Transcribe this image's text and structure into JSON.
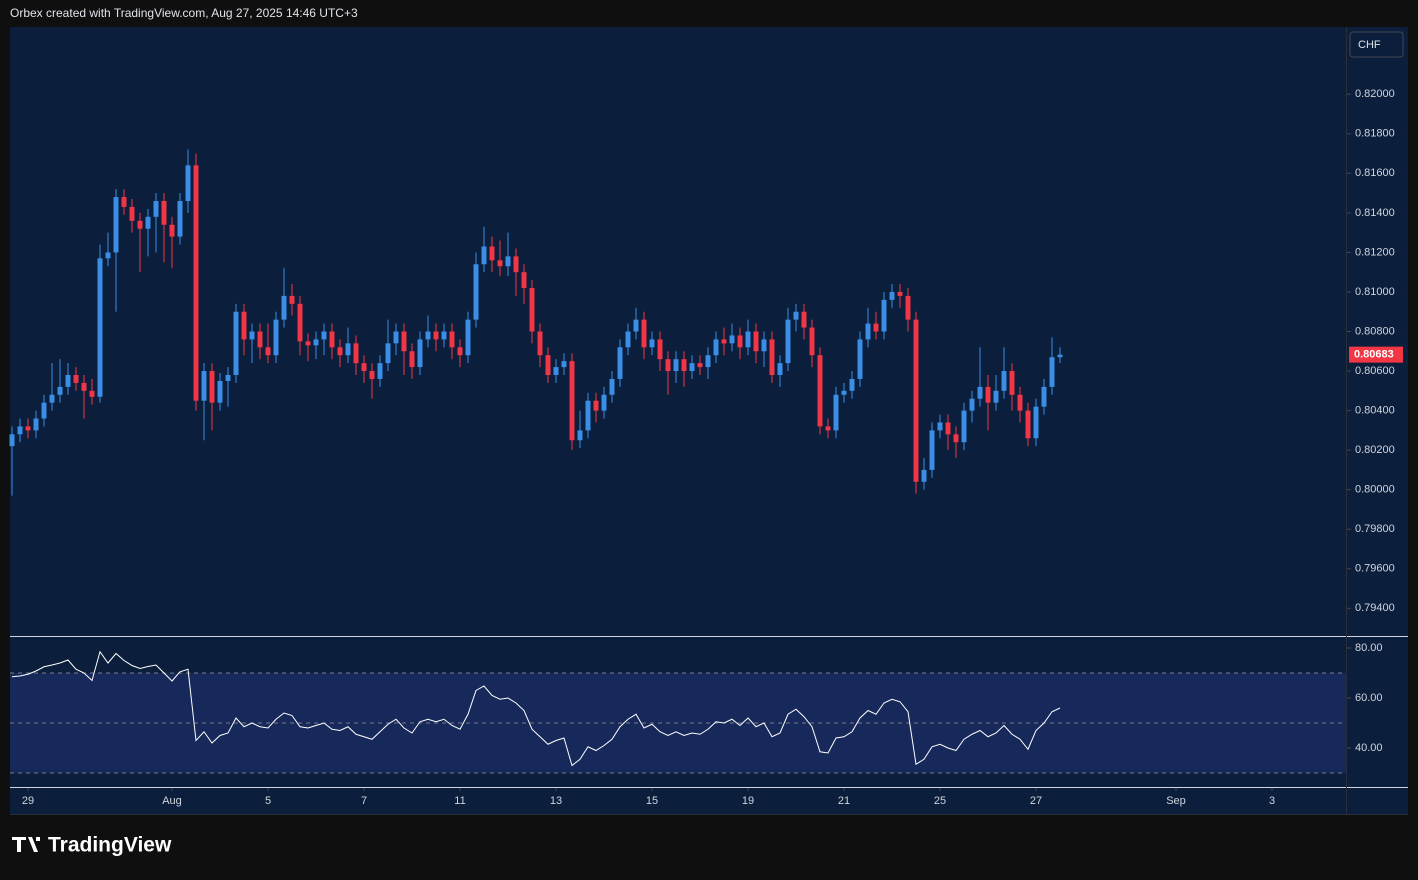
{
  "header": {
    "title": "Orbex created with TradingView.com, Aug 27, 2025 14:46 UTC+3",
    "currency": "CHF",
    "logo": "TradingView"
  },
  "chart_data": [
    {
      "type": "candlestick",
      "up_color": "#3a8ee6",
      "down_color": "#f23645",
      "background": "#0b1e3b",
      "xlim": [
        -0.25,
        166.75
      ],
      "ylim": [
        0.7926,
        0.8234
      ],
      "yticks": [
        {
          "value": 0.82,
          "label": "0.82000"
        },
        {
          "value": 0.818,
          "label": "0.81800"
        },
        {
          "value": 0.816,
          "label": "0.81600"
        },
        {
          "value": 0.814,
          "label": "0.81400"
        },
        {
          "value": 0.812,
          "label": "0.81200"
        },
        {
          "value": 0.81,
          "label": "0.81000"
        },
        {
          "value": 0.808,
          "label": "0.80800"
        },
        {
          "value": 0.806,
          "label": "0.80600"
        },
        {
          "value": 0.804,
          "label": "0.80400"
        },
        {
          "value": 0.802,
          "label": "0.80200"
        },
        {
          "value": 0.8,
          "label": "0.80000"
        },
        {
          "value": 0.798,
          "label": "0.79800"
        },
        {
          "value": 0.796,
          "label": "0.79600"
        },
        {
          "value": 0.794,
          "label": "0.79400"
        }
      ],
      "open": [
        0.8022,
        0.8028,
        0.8032,
        0.803,
        0.8036,
        0.8044,
        0.8048,
        0.8052,
        0.8058,
        0.8054,
        0.805,
        0.8047,
        0.8117,
        0.812,
        0.8148,
        0.8143,
        0.8136,
        0.8132,
        0.8138,
        0.8146,
        0.8134,
        0.8128,
        0.8146,
        0.8164,
        0.8045,
        0.806,
        0.8044,
        0.8055,
        0.8058,
        0.809,
        0.8076,
        0.808,
        0.8072,
        0.8068,
        0.8086,
        0.8098,
        0.8094,
        0.8075,
        0.8073,
        0.8076,
        0.808,
        0.8072,
        0.8068,
        0.8074,
        0.8064,
        0.806,
        0.8056,
        0.8064,
        0.8074,
        0.808,
        0.807,
        0.8062,
        0.8076,
        0.808,
        0.8076,
        0.808,
        0.8072,
        0.8068,
        0.8086,
        0.8114,
        0.8123,
        0.8116,
        0.8113,
        0.8118,
        0.811,
        0.8102,
        0.808,
        0.8068,
        0.8058,
        0.8062,
        0.8065,
        0.8025,
        0.803,
        0.8045,
        0.804,
        0.8048,
        0.8056,
        0.8072,
        0.808,
        0.8086,
        0.8072,
        0.8076,
        0.8066,
        0.806,
        0.8066,
        0.806,
        0.8064,
        0.8062,
        0.8068,
        0.8076,
        0.8074,
        0.8078,
        0.8072,
        0.808,
        0.807,
        0.8076,
        0.8058,
        0.8064,
        0.8086,
        0.809,
        0.8082,
        0.8068,
        0.8032,
        0.803,
        0.8048,
        0.805,
        0.8056,
        0.8076,
        0.8084,
        0.808,
        0.8096,
        0.81,
        0.8098,
        0.8086,
        0.8004,
        0.801,
        0.803,
        0.8034,
        0.8028,
        0.8024,
        0.804,
        0.8046,
        0.8052,
        0.8044,
        0.805,
        0.806,
        0.8048,
        0.804,
        0.8026,
        0.8042,
        0.8052,
        0.8067
      ],
      "high": [
        0.8032,
        0.8036,
        0.8036,
        0.804,
        0.8048,
        0.8064,
        0.8066,
        0.8064,
        0.8062,
        0.8058,
        0.8056,
        0.8124,
        0.813,
        0.8152,
        0.8152,
        0.8147,
        0.814,
        0.8142,
        0.815,
        0.815,
        0.8138,
        0.815,
        0.8172,
        0.817,
        0.8064,
        0.8064,
        0.8059,
        0.8062,
        0.8094,
        0.8094,
        0.8084,
        0.8084,
        0.8084,
        0.809,
        0.8112,
        0.8104,
        0.8098,
        0.8079,
        0.808,
        0.8084,
        0.8084,
        0.8076,
        0.8082,
        0.8078,
        0.8068,
        0.8064,
        0.8068,
        0.8086,
        0.8084,
        0.8084,
        0.8074,
        0.808,
        0.8088,
        0.8084,
        0.8084,
        0.8084,
        0.8076,
        0.809,
        0.812,
        0.8133,
        0.8128,
        0.8126,
        0.813,
        0.8122,
        0.8114,
        0.8106,
        0.8084,
        0.8072,
        0.8066,
        0.8069,
        0.8069,
        0.804,
        0.8049,
        0.8049,
        0.8052,
        0.806,
        0.8076,
        0.8084,
        0.8092,
        0.809,
        0.808,
        0.808,
        0.807,
        0.807,
        0.807,
        0.8068,
        0.8068,
        0.8072,
        0.808,
        0.8082,
        0.8084,
        0.8082,
        0.8086,
        0.8084,
        0.808,
        0.808,
        0.8068,
        0.8092,
        0.8094,
        0.8094,
        0.8086,
        0.8072,
        0.8036,
        0.8052,
        0.8054,
        0.806,
        0.808,
        0.8092,
        0.809,
        0.81,
        0.8104,
        0.8104,
        0.8102,
        0.809,
        0.8016,
        0.8034,
        0.8038,
        0.8038,
        0.8032,
        0.8044,
        0.805,
        0.8072,
        0.8058,
        0.8058,
        0.8072,
        0.8064,
        0.8052,
        0.8044,
        0.8046,
        0.8056,
        0.8077,
        0.8072
      ],
      "low": [
        0.7997,
        0.8024,
        0.8026,
        0.8026,
        0.8032,
        0.804,
        0.8044,
        0.8048,
        0.805,
        0.8036,
        0.8043,
        0.8044,
        0.8113,
        0.809,
        0.8139,
        0.813,
        0.811,
        0.8118,
        0.812,
        0.8115,
        0.8112,
        0.8124,
        0.814,
        0.804,
        0.8025,
        0.803,
        0.804,
        0.8042,
        0.8054,
        0.8068,
        0.8064,
        0.8066,
        0.8064,
        0.8064,
        0.8082,
        0.8088,
        0.8068,
        0.8065,
        0.8066,
        0.8068,
        0.8066,
        0.8062,
        0.8064,
        0.8058,
        0.8054,
        0.8046,
        0.8052,
        0.806,
        0.8068,
        0.8058,
        0.8056,
        0.8058,
        0.8072,
        0.807,
        0.8072,
        0.8066,
        0.8062,
        0.8064,
        0.8082,
        0.811,
        0.811,
        0.8108,
        0.8108,
        0.8098,
        0.8094,
        0.8074,
        0.8062,
        0.8054,
        0.8054,
        0.8058,
        0.802,
        0.8021,
        0.8026,
        0.8034,
        0.8036,
        0.8044,
        0.8052,
        0.8068,
        0.8076,
        0.8066,
        0.8068,
        0.806,
        0.8048,
        0.8054,
        0.8052,
        0.8056,
        0.8058,
        0.8056,
        0.8064,
        0.8068,
        0.807,
        0.8066,
        0.8068,
        0.8064,
        0.8062,
        0.8054,
        0.8052,
        0.806,
        0.808,
        0.8076,
        0.8062,
        0.8028,
        0.8026,
        0.8026,
        0.8044,
        0.8046,
        0.8052,
        0.8072,
        0.8076,
        0.8076,
        0.8092,
        0.8092,
        0.808,
        0.7998,
        0.8,
        0.8006,
        0.8026,
        0.802,
        0.8016,
        0.802,
        0.8034,
        0.8042,
        0.803,
        0.804,
        0.8046,
        0.804,
        0.8034,
        0.8022,
        0.8022,
        0.8038,
        0.8048,
        0.8064
      ],
      "close": [
        0.8028,
        0.8032,
        0.803,
        0.8036,
        0.8044,
        0.8048,
        0.8052,
        0.8058,
        0.8054,
        0.805,
        0.8047,
        0.8117,
        0.812,
        0.8148,
        0.8143,
        0.8136,
        0.8132,
        0.8138,
        0.8146,
        0.8134,
        0.8128,
        0.8146,
        0.8164,
        0.8045,
        0.806,
        0.8044,
        0.8055,
        0.8058,
        0.809,
        0.8076,
        0.808,
        0.8072,
        0.8068,
        0.8086,
        0.8098,
        0.8094,
        0.8075,
        0.8073,
        0.8076,
        0.808,
        0.8072,
        0.8068,
        0.8074,
        0.8064,
        0.806,
        0.8056,
        0.8064,
        0.8074,
        0.808,
        0.807,
        0.8062,
        0.8076,
        0.808,
        0.8076,
        0.808,
        0.8072,
        0.8068,
        0.8086,
        0.8114,
        0.8123,
        0.8116,
        0.8113,
        0.8118,
        0.811,
        0.8102,
        0.808,
        0.8068,
        0.8058,
        0.8062,
        0.8065,
        0.8025,
        0.803,
        0.8045,
        0.804,
        0.8048,
        0.8056,
        0.8072,
        0.808,
        0.8086,
        0.8072,
        0.8076,
        0.8066,
        0.806,
        0.8066,
        0.806,
        0.8064,
        0.8062,
        0.8068,
        0.8076,
        0.8074,
        0.8078,
        0.8072,
        0.808,
        0.807,
        0.8076,
        0.8058,
        0.8064,
        0.8086,
        0.809,
        0.8082,
        0.8068,
        0.8032,
        0.803,
        0.8048,
        0.805,
        0.8056,
        0.8076,
        0.8084,
        0.808,
        0.8096,
        0.81,
        0.8098,
        0.8086,
        0.8004,
        0.801,
        0.803,
        0.8034,
        0.8028,
        0.8024,
        0.804,
        0.8046,
        0.8052,
        0.8044,
        0.805,
        0.806,
        0.8048,
        0.804,
        0.8026,
        0.8042,
        0.8052,
        0.8067,
        0.80683
      ]
    },
    {
      "type": "line",
      "color": "#ffffff",
      "band_color": "#17295a",
      "xlim": [
        -0.25,
        166.75
      ],
      "ylim": [
        24.4,
        84.4
      ],
      "levels": [
        70,
        50,
        30
      ],
      "yticks": [
        {
          "value": 80,
          "label": "80.00"
        },
        {
          "value": 60,
          "label": "60.00"
        },
        {
          "value": 40,
          "label": "40.00"
        }
      ],
      "xticks": [
        {
          "value": 2,
          "label": "29"
        },
        {
          "value": 20,
          "label": "Aug"
        },
        {
          "value": 32,
          "label": "5"
        },
        {
          "value": 44,
          "label": "7"
        },
        {
          "value": 56,
          "label": "11"
        },
        {
          "value": 68,
          "label": "13"
        },
        {
          "value": 80,
          "label": "15"
        },
        {
          "value": 92,
          "label": "19"
        },
        {
          "value": 104,
          "label": "21"
        },
        {
          "value": 116,
          "label": "25"
        },
        {
          "value": 128,
          "label": "27"
        },
        {
          "value": 145.5,
          "label": "Sep"
        },
        {
          "value": 157.5,
          "label": "3"
        }
      ],
      "values": [
        68.5,
        68.8,
        69.5,
        70.8,
        72.5,
        73.2,
        74.0,
        75.2,
        71.5,
        70.0,
        67.0,
        78.5,
        74.0,
        77.8,
        75.0,
        73.0,
        71.8,
        72.6,
        73.2,
        70.0,
        66.8,
        70.5,
        71.5,
        43.0,
        46.5,
        42.0,
        45.0,
        46.0,
        52.0,
        48.5,
        50.0,
        48.5,
        48.0,
        51.5,
        54.0,
        53.0,
        48.5,
        48.0,
        49.0,
        50.0,
        47.5,
        47.0,
        48.5,
        45.5,
        44.5,
        43.5,
        46.5,
        49.5,
        51.5,
        48.0,
        46.0,
        50.5,
        51.5,
        50.5,
        51.5,
        49.0,
        47.5,
        53.5,
        63.0,
        64.8,
        61.0,
        59.5,
        60.0,
        58.0,
        55.0,
        47.5,
        44.5,
        41.5,
        43.0,
        44.0,
        33.0,
        35.5,
        40.5,
        39.0,
        41.0,
        43.5,
        48.5,
        51.5,
        53.5,
        48.0,
        49.5,
        46.5,
        45.0,
        46.5,
        45.0,
        46.0,
        45.5,
        47.5,
        50.5,
        50.0,
        51.5,
        49.0,
        52.0,
        48.5,
        50.0,
        44.5,
        46.0,
        53.5,
        55.5,
        52.5,
        48.5,
        38.5,
        38.0,
        44.0,
        44.5,
        46.5,
        52.0,
        55.0,
        53.5,
        58.0,
        59.5,
        58.5,
        54.5,
        33.5,
        35.5,
        40.5,
        41.5,
        40.0,
        39.0,
        43.5,
        45.5,
        47.0,
        44.5,
        46.0,
        49.0,
        45.5,
        43.5,
        39.5,
        47.0,
        50.0,
        54.5,
        56.0
      ]
    }
  ]
}
